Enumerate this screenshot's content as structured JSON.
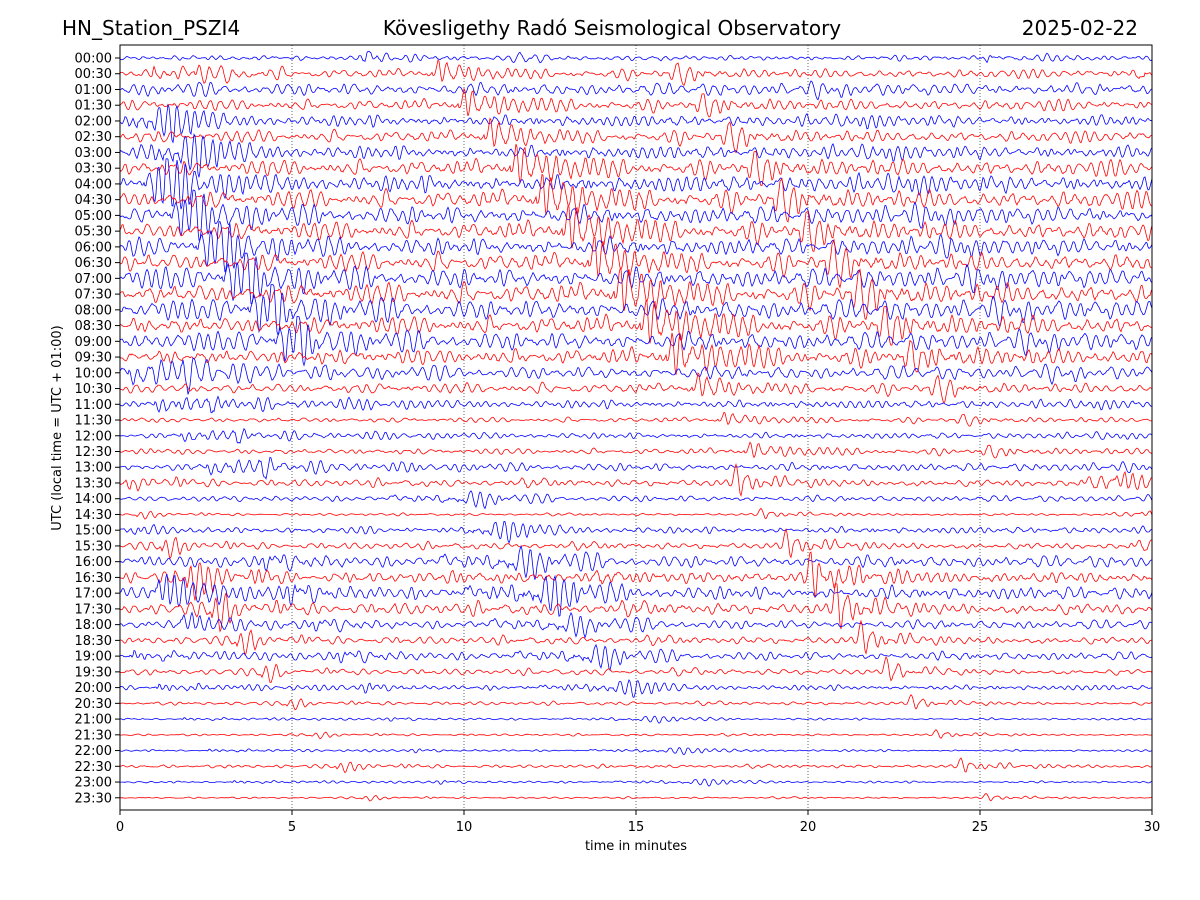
{
  "chart_data": {
    "type": "line",
    "title_left": "HN_Station_PSZI4",
    "title": "Kövesligethy Radó Seismological Observatory",
    "title_right": "2025-02-22",
    "xlabel": "time in minutes",
    "ylabel": "UTC (local time = UTC + 01:00)",
    "xlim": [
      0,
      30
    ],
    "x_ticks": [
      "0",
      "5",
      "10",
      "15",
      "20",
      "25",
      "30"
    ],
    "grid": "vertical dotted at x ticks",
    "series_colors": [
      "#0000ff",
      "#ff0000"
    ],
    "rows": [
      "00:00",
      "00:30",
      "01:00",
      "01:30",
      "02:00",
      "02:30",
      "03:00",
      "03:30",
      "04:00",
      "04:30",
      "05:00",
      "05:30",
      "06:00",
      "06:30",
      "07:00",
      "07:30",
      "08:00",
      "08:30",
      "09:00",
      "09:30",
      "10:00",
      "10:30",
      "11:00",
      "11:30",
      "12:00",
      "12:30",
      "13:00",
      "13:30",
      "14:00",
      "14:30",
      "15:00",
      "15:30",
      "16:00",
      "16:30",
      "17:00",
      "17:30",
      "18:00",
      "18:30",
      "19:00",
      "19:30",
      "20:00",
      "20:30",
      "21:00",
      "21:30",
      "22:00",
      "22:30",
      "23:00",
      "23:30"
    ],
    "relative_amplitude": [
      0.25,
      0.5,
      0.5,
      0.55,
      0.6,
      0.6,
      0.7,
      0.8,
      0.9,
      0.9,
      0.9,
      0.9,
      0.9,
      0.9,
      1.0,
      1.0,
      1.0,
      0.9,
      0.9,
      0.8,
      0.7,
      0.5,
      0.4,
      0.25,
      0.3,
      0.3,
      0.4,
      0.45,
      0.3,
      0.15,
      0.35,
      0.4,
      0.6,
      0.7,
      0.8,
      0.7,
      0.5,
      0.45,
      0.45,
      0.35,
      0.3,
      0.2,
      0.12,
      0.12,
      0.12,
      0.2,
      0.12,
      0.1
    ]
  }
}
